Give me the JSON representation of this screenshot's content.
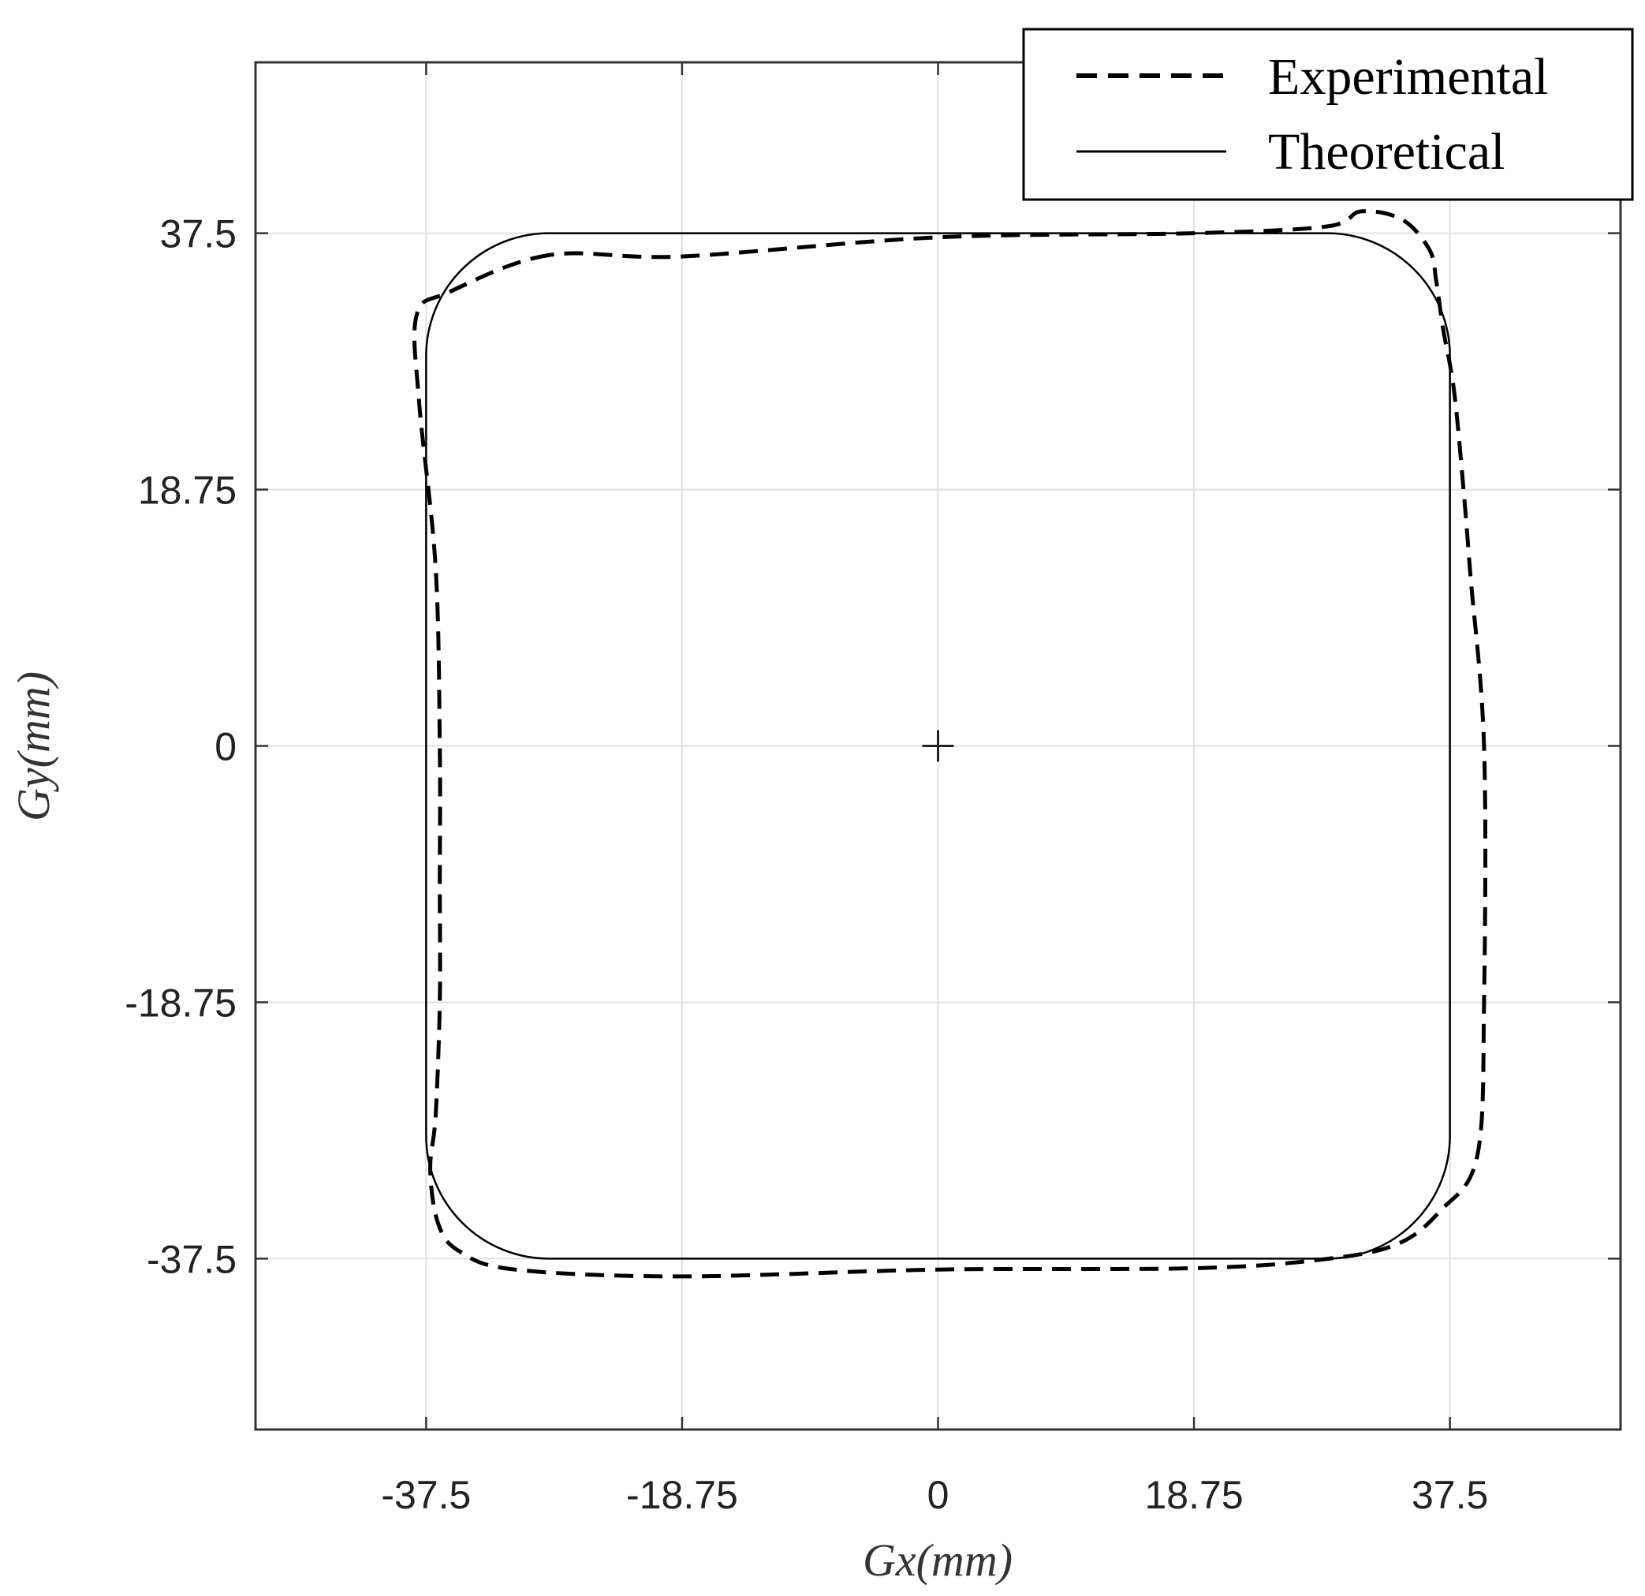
{
  "chart_data": {
    "type": "line",
    "title": "",
    "xlabel": "Gx(mm)",
    "ylabel": "Gy(mm)",
    "xlim": [
      -50,
      50
    ],
    "ylim": [
      -50,
      50
    ],
    "xticks": [
      -37.5,
      -18.75,
      0,
      18.75,
      37.5
    ],
    "yticks": [
      -37.5,
      -18.75,
      0,
      18.75,
      37.5
    ],
    "xtick_labels": [
      "-37.5",
      "-18.75",
      "0",
      "18.75",
      "37.5"
    ],
    "ytick_labels": [
      "-37.5",
      "-18.75",
      "0",
      "18.75",
      "37.5"
    ],
    "grid": true,
    "legend_position": "top-right",
    "center_marker": {
      "x": 0,
      "y": 0,
      "symbol": "+"
    },
    "series": [
      {
        "name": "Experimental",
        "style": "dashed",
        "x": [
          -28.5,
          -35.8,
          -38.2,
          -38.0,
          -36.8,
          -36.5,
          -36.5,
          -36.5,
          -36.8,
          -37.2,
          -36.6,
          -35.0,
          -31.0,
          -18.8,
          0.0,
          18.75,
          27.8,
          33.5,
          36.8,
          39.5,
          40.0,
          40.0,
          39.0,
          38.5,
          37.8,
          37.0,
          36.5,
          36.0,
          34.0,
          31.0,
          28.5,
          18.75,
          0.0,
          -18.8,
          -28.5
        ],
        "y": [
          35.9,
          33.2,
          31.5,
          25.0,
          13.0,
          0.0,
          -10.0,
          -18.75,
          -27.0,
          -31.0,
          -35.0,
          -37.0,
          -38.3,
          -38.8,
          -38.3,
          -38.2,
          -37.6,
          -36.5,
          -34.0,
          -30.0,
          -18.75,
          0.0,
          12.5,
          18.75,
          26.0,
          30.5,
          34.0,
          36.3,
          38.5,
          39.1,
          38.0,
          37.5,
          37.2,
          35.8,
          35.9
        ]
      },
      {
        "name": "Theoretical",
        "style": "solid",
        "shape": "rounded-square",
        "xmin": -37.5,
        "xmax": 37.5,
        "ymin": -37.5,
        "ymax": 37.5,
        "corner_radius": 9
      }
    ]
  }
}
